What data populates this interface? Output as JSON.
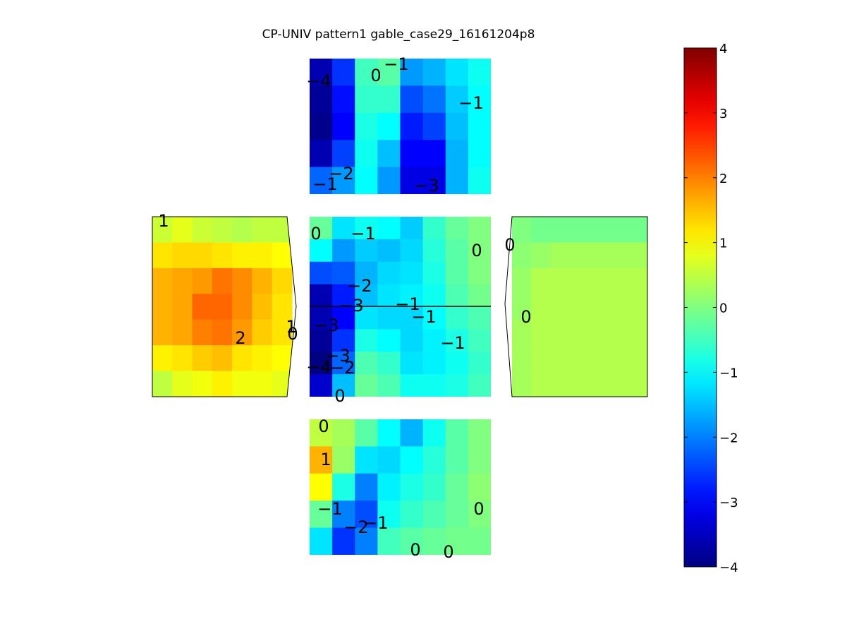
{
  "chart_data": {
    "type": "heatmap",
    "title": "CP-UNIV pattern1 gable_case29_16161204p8",
    "colorbar": {
      "range": [
        -4,
        4
      ],
      "ticks": [
        "4",
        "3",
        "2",
        "1",
        "0",
        "-1",
        "-2",
        "-3",
        "-4"
      ],
      "colormap": "jet"
    },
    "panels": [
      {
        "name": "top-roof",
        "labels": [
          "-4",
          "0",
          "-1",
          "-1",
          "-1",
          "-2",
          "-3"
        ],
        "values": [
          [
            -3.6,
            -2.6,
            -0.5,
            -0.3,
            -1.8,
            -1.6,
            -1.2,
            -0.9
          ],
          [
            -3.8,
            -2.9,
            -0.6,
            -0.6,
            -2.4,
            -2.1,
            -1.4,
            -1.0
          ],
          [
            -3.9,
            -3.0,
            -0.8,
            -1.0,
            -2.8,
            -2.5,
            -1.5,
            -1.0
          ],
          [
            -3.6,
            -2.5,
            -0.9,
            -1.5,
            -3.0,
            -3.0,
            -1.6,
            -1.0
          ],
          [
            -2.2,
            -1.8,
            -1.0,
            -1.8,
            -3.2,
            -3.2,
            -1.6,
            -0.9
          ]
        ]
      },
      {
        "name": "left-wall",
        "labels": [
          "1",
          "2",
          "1",
          "0"
        ],
        "values": [
          [
            0.6,
            0.8,
            0.6,
            0.5,
            0.4,
            0.5,
            0.5
          ],
          [
            1.2,
            1.3,
            1.3,
            1.2,
            1.1,
            1.1,
            1.0
          ],
          [
            1.6,
            1.7,
            1.8,
            2.1,
            1.9,
            1.6,
            1.3
          ],
          [
            1.6,
            1.7,
            2.2,
            2.2,
            1.9,
            1.5,
            1.2
          ],
          [
            1.6,
            1.7,
            2.0,
            2.1,
            1.8,
            1.4,
            1.2
          ],
          [
            1.1,
            1.2,
            1.4,
            1.5,
            1.2,
            1.1,
            1.0
          ],
          [
            0.5,
            0.8,
            0.9,
            1.1,
            0.9,
            0.9,
            0.8
          ]
        ]
      },
      {
        "name": "center-roof",
        "labels": [
          "0",
          "-1",
          "0",
          "-2",
          "-3",
          "-1",
          "-1",
          "-3",
          "-1",
          "-3",
          "-4",
          "-2",
          "0"
        ],
        "values": [
          [
            -0.2,
            -1.2,
            -0.9,
            -1.0,
            -1.4,
            -0.6,
            -0.2,
            0.0
          ],
          [
            -1.0,
            -1.8,
            -1.4,
            -1.5,
            -1.3,
            -0.7,
            -0.3,
            0.0
          ],
          [
            -2.4,
            -2.3,
            -1.6,
            -1.3,
            -1.2,
            -0.8,
            -0.3,
            0.0
          ],
          [
            -3.6,
            -2.8,
            -1.5,
            -1.2,
            -1.1,
            -0.9,
            -0.4,
            -0.1
          ],
          [
            -3.6,
            -3.0,
            -1.2,
            -1.3,
            -1.3,
            -1.0,
            -0.6,
            -0.4
          ],
          [
            -3.8,
            -2.6,
            -0.8,
            -1.0,
            -1.3,
            -1.1,
            -0.8,
            -0.5
          ],
          [
            -4.0,
            -2.2,
            -0.4,
            -0.6,
            -1.2,
            -1.1,
            -0.9,
            -0.6
          ],
          [
            -3.4,
            -1.5,
            -0.2,
            -0.4,
            -0.9,
            -0.9,
            -0.8,
            -0.5
          ]
        ]
      },
      {
        "name": "right-wall",
        "labels": [
          "0",
          "0"
        ],
        "values": [
          [
            0.0,
            -0.1,
            -0.1,
            -0.1,
            -0.1,
            -0.1,
            -0.1
          ],
          [
            0.1,
            0.2,
            0.3,
            0.3,
            0.3,
            0.3,
            0.3
          ],
          [
            0.2,
            0.4,
            0.4,
            0.4,
            0.4,
            0.4,
            0.4
          ],
          [
            0.2,
            0.4,
            0.4,
            0.4,
            0.4,
            0.4,
            0.4
          ],
          [
            0.3,
            0.4,
            0.4,
            0.4,
            0.4,
            0.4,
            0.4
          ],
          [
            0.3,
            0.4,
            0.4,
            0.4,
            0.4,
            0.4,
            0.4
          ],
          [
            0.3,
            0.4,
            0.4,
            0.4,
            0.4,
            0.4,
            0.4
          ]
        ]
      },
      {
        "name": "bottom-roof",
        "labels": [
          "0",
          "1",
          "-1",
          "0",
          "-2",
          "-1",
          "0",
          "0"
        ],
        "values": [
          [
            0.5,
            0.3,
            -0.3,
            -1.0,
            -1.6,
            -0.9,
            -0.3,
            0.0
          ],
          [
            1.6,
            0.2,
            -1.2,
            -1.3,
            -1.0,
            -0.7,
            -0.3,
            0.0
          ],
          [
            1.0,
            -0.8,
            -2.0,
            -1.1,
            -0.8,
            -0.6,
            -0.2,
            0.1
          ],
          [
            -0.2,
            -2.0,
            -2.4,
            -0.9,
            -0.6,
            -0.4,
            -0.2,
            0.0
          ],
          [
            -1.2,
            -2.6,
            -2.0,
            -0.5,
            -0.3,
            -0.2,
            -0.1,
            -0.1
          ]
        ]
      }
    ]
  }
}
